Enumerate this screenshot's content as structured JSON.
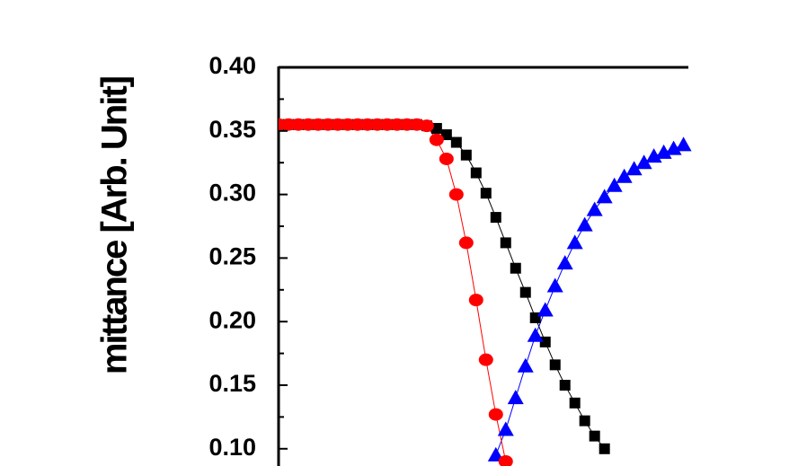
{
  "chart_data": {
    "type": "line",
    "y_label": "mittance [Arb. Unit]",
    "x": [
      0,
      1,
      2,
      3,
      4,
      5,
      6,
      7,
      8,
      9,
      10,
      11,
      12,
      13,
      14,
      15,
      16,
      17,
      18,
      19,
      20,
      21,
      22,
      23,
      24,
      25,
      26,
      27,
      28,
      29,
      30,
      31,
      32,
      33,
      34,
      35,
      36,
      37,
      38,
      39,
      40,
      41
    ],
    "xlim": [
      0,
      41.4
    ],
    "ylim": [
      0.0865,
      0.4
    ],
    "yticks": [
      {
        "value": 0.1,
        "label": "0.10"
      },
      0.15,
      {
        "value": 0.2,
        "label": "0.20"
      },
      0.25,
      {
        "value": 0.3,
        "label": "0.30"
      },
      0.35,
      {
        "value": 0.4,
        "label": "0.40"
      }
    ],
    "series": [
      {
        "color": "#000000",
        "marker": "square",
        "values": [
          0.355,
          0.355,
          0.355,
          0.355,
          0.355,
          0.355,
          0.355,
          0.355,
          0.355,
          0.355,
          0.355,
          0.355,
          0.355,
          0.355,
          0.355,
          0.354,
          0.352,
          0.347,
          0.341,
          0.331,
          0.317,
          0.301,
          0.282,
          0.262,
          0.242,
          0.223,
          0.203,
          0.184,
          0.166,
          0.15,
          0.136,
          0.122,
          0.11,
          0.1,
          null,
          null,
          null,
          null,
          null,
          null,
          null,
          null
        ]
      },
      {
        "color": "#0000ff",
        "marker": "triangle",
        "values": [
          null,
          null,
          null,
          null,
          null,
          null,
          null,
          null,
          null,
          null,
          null,
          null,
          null,
          null,
          null,
          null,
          null,
          null,
          null,
          null,
          null,
          null,
          0.095,
          0.115,
          0.14,
          0.165,
          0.189,
          0.209,
          0.228,
          0.246,
          0.262,
          0.276,
          0.288,
          0.298,
          0.307,
          0.314,
          0.32,
          0.325,
          0.33,
          0.333,
          0.336,
          0.339
        ]
      },
      {
        "color": "#ff0000",
        "marker": "circle",
        "values": [
          0.355,
          0.355,
          0.355,
          0.355,
          0.355,
          0.355,
          0.355,
          0.355,
          0.355,
          0.355,
          0.355,
          0.355,
          0.355,
          0.355,
          0.355,
          0.354,
          0.343,
          0.328,
          0.3,
          0.262,
          0.217,
          0.17,
          0.127,
          0.09,
          null,
          null,
          null,
          null,
          null,
          null,
          null,
          null,
          null,
          null,
          null,
          null,
          null,
          null,
          null,
          null,
          null,
          null
        ]
      }
    ]
  }
}
